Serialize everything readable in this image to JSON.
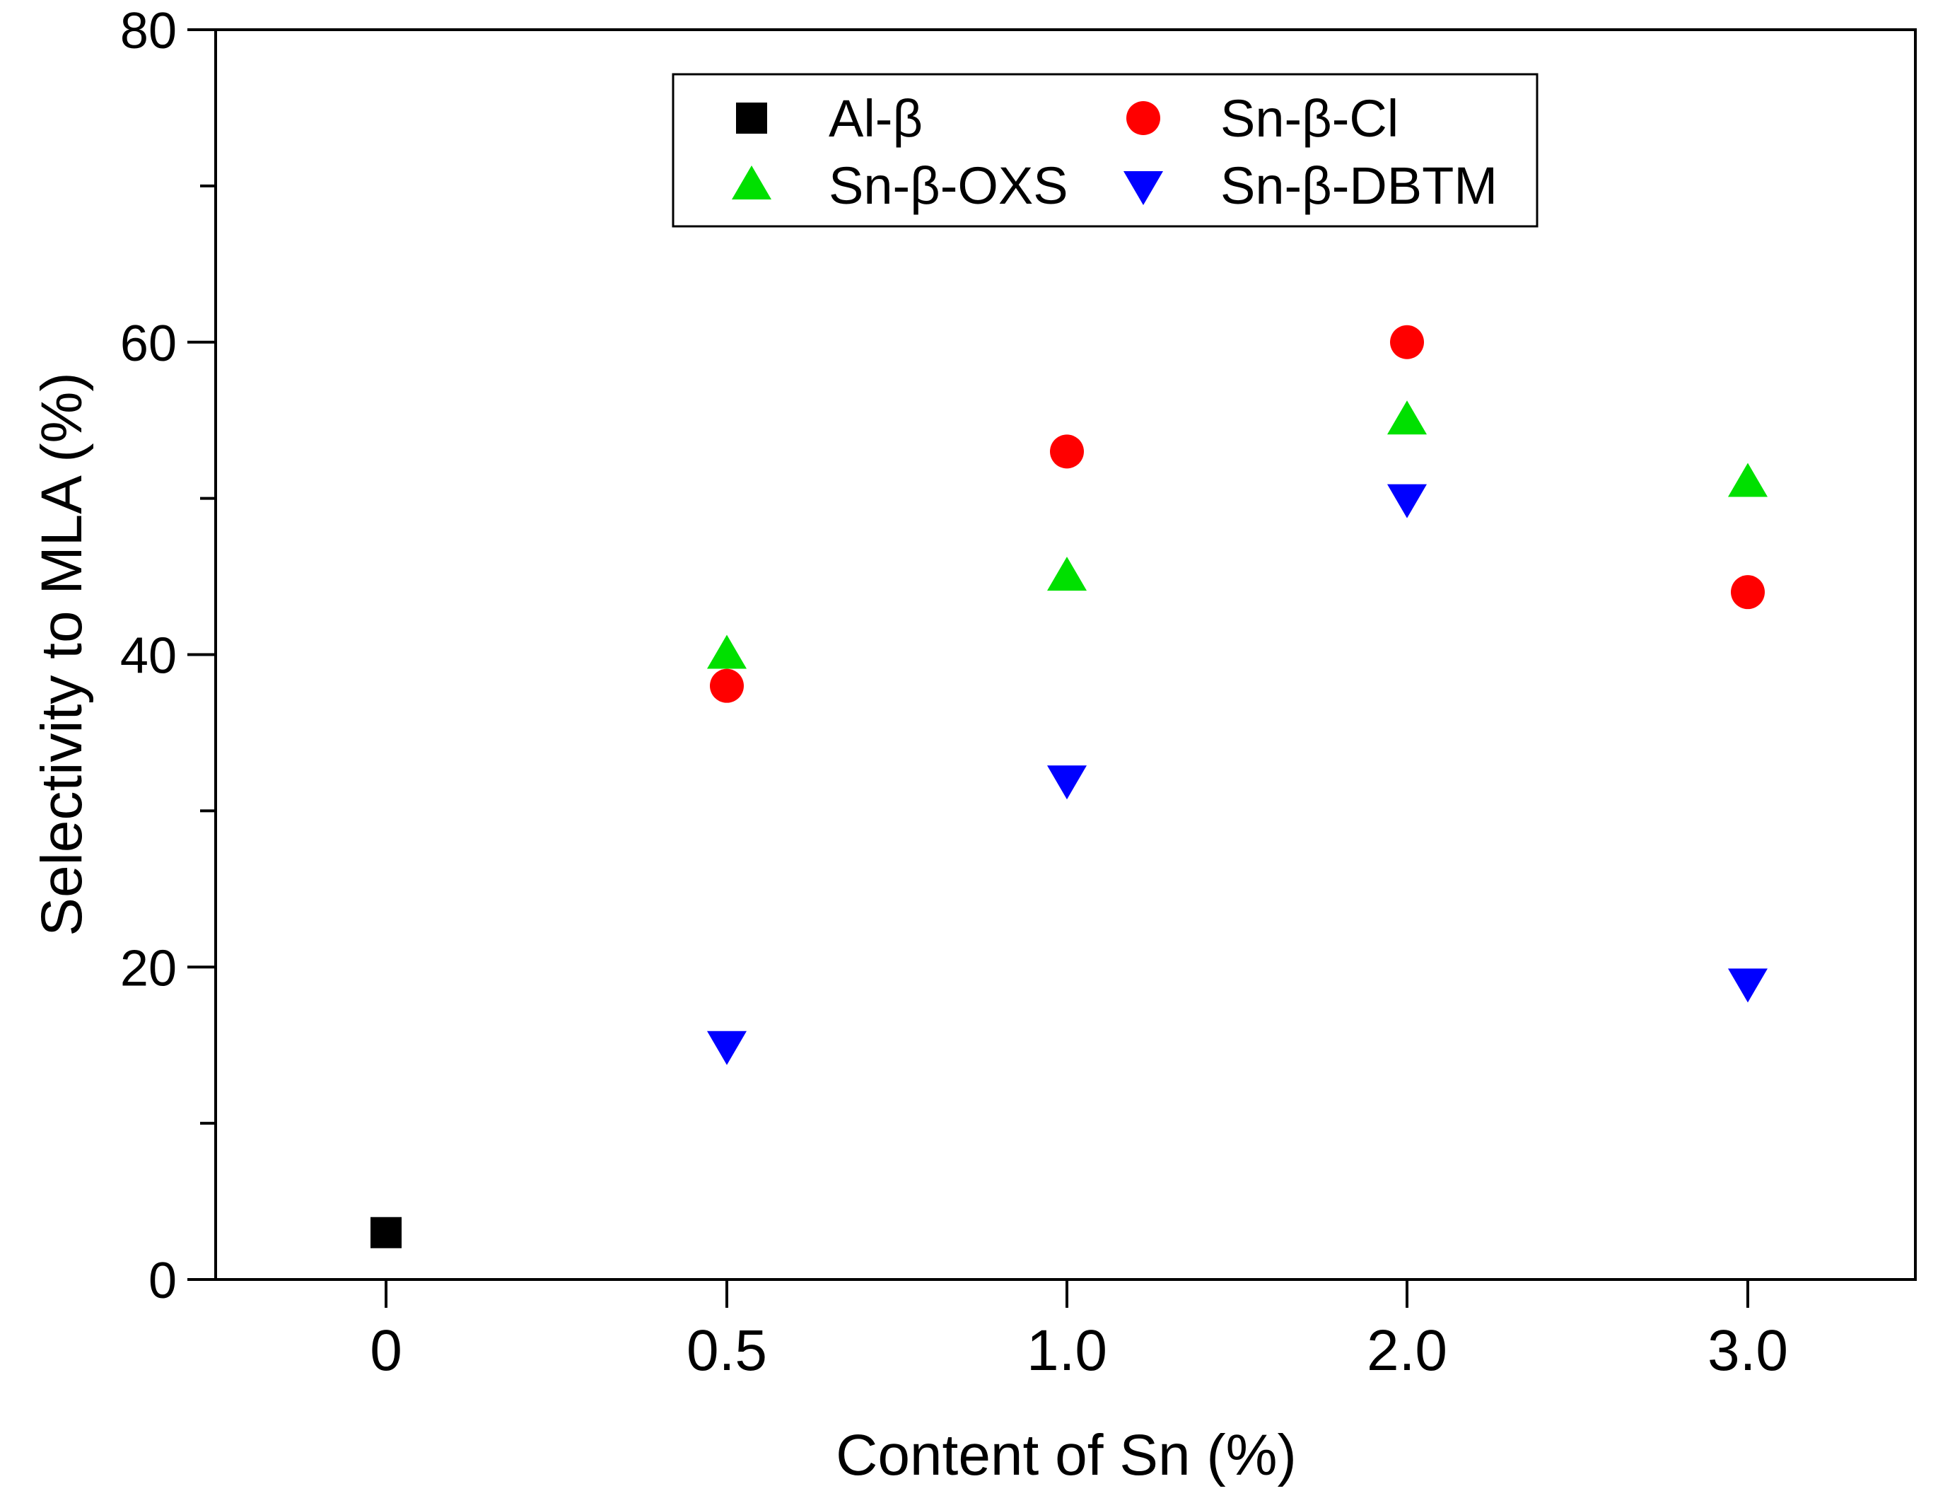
{
  "chart_data": {
    "type": "scatter",
    "title": "",
    "xlabel": "Content of Sn (%)",
    "ylabel": "Selectivity to MLA (%)",
    "categories": [
      "0",
      "0.5",
      "1.0",
      "2.0",
      "3.0"
    ],
    "ylim": [
      0,
      80
    ],
    "yticks": [
      "0",
      "20",
      "40",
      "60",
      "80"
    ],
    "grid": false,
    "legend_position": "top-center",
    "series": [
      {
        "name": "Al-β",
        "marker": "square",
        "color": "#000000",
        "values": [
          3,
          null,
          null,
          null,
          null
        ]
      },
      {
        "name": "Sn-β-Cl",
        "marker": "circle",
        "color": "#ff0000",
        "values": [
          null,
          38,
          53,
          60,
          44
        ]
      },
      {
        "name": "Sn-β-OXS",
        "marker": "triangle-up",
        "color": "#00e000",
        "values": [
          null,
          40,
          45,
          55,
          51
        ]
      },
      {
        "name": "Sn-β-DBTM",
        "marker": "triangle-down",
        "color": "#0000ff",
        "values": [
          null,
          15,
          32,
          50,
          19
        ]
      }
    ]
  }
}
